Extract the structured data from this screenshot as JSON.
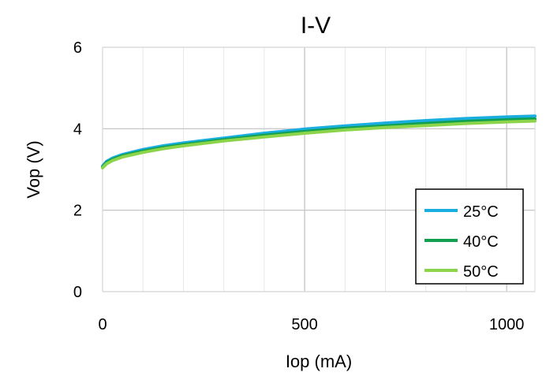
{
  "chart_data": {
    "type": "line",
    "title": "I-V",
    "xlabel": "Iop (mA)",
    "ylabel": "Vop (V)",
    "xlim": [
      0,
      1070
    ],
    "ylim": [
      0,
      6
    ],
    "x_ticks": [
      0,
      500,
      1000
    ],
    "y_ticks": [
      0,
      2,
      4,
      6
    ],
    "x_tick_labels": [
      "0",
      "500",
      "1000"
    ],
    "y_tick_labels": [
      "0",
      "2",
      "4",
      "6"
    ],
    "grid": true,
    "legend_position": "bottom-right",
    "x": [
      0,
      10,
      25,
      50,
      100,
      150,
      200,
      300,
      400,
      500,
      600,
      700,
      800,
      900,
      1000,
      1070
    ],
    "series": [
      {
        "name": "25°C",
        "color": "#1AADE0",
        "values": [
          3.08,
          3.2,
          3.28,
          3.37,
          3.49,
          3.58,
          3.65,
          3.77,
          3.89,
          3.99,
          4.07,
          4.14,
          4.2,
          4.25,
          4.29,
          4.31
        ]
      },
      {
        "name": "40°C",
        "color": "#10A050",
        "values": [
          3.06,
          3.17,
          3.25,
          3.34,
          3.45,
          3.54,
          3.61,
          3.73,
          3.84,
          3.93,
          4.01,
          4.07,
          4.13,
          4.18,
          4.22,
          4.24
        ]
      },
      {
        "name": "50°C",
        "color": "#8CD44A",
        "values": [
          3.04,
          3.14,
          3.22,
          3.31,
          3.42,
          3.51,
          3.58,
          3.7,
          3.8,
          3.89,
          3.97,
          4.03,
          4.08,
          4.13,
          4.17,
          4.19
        ]
      }
    ]
  }
}
